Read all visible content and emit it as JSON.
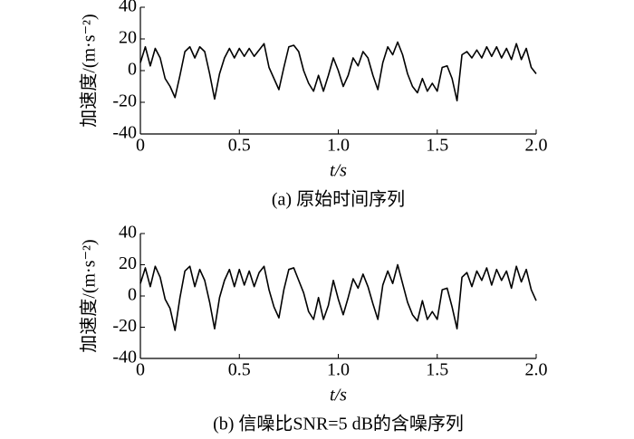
{
  "chart_data": [
    {
      "type": "line",
      "title": "(a) 原始时间序列",
      "xlabel": "t/s",
      "ylabel": "加速度/(m·s⁻²)",
      "color": "#000000",
      "xlim": [
        0,
        2
      ],
      "xticks": [
        0,
        0.5,
        {
          "value": 1,
          "label": "1.0"
        },
        1.5,
        {
          "value": 2,
          "label": "2.0"
        }
      ],
      "ylim": [
        -40,
        40
      ],
      "yticks": [
        -40,
        -20,
        0,
        20,
        40
      ],
      "x": [
        0,
        0.025,
        0.05,
        0.075,
        0.1,
        0.125,
        0.15,
        0.175,
        0.2,
        0.225,
        0.25,
        0.275,
        0.3,
        0.325,
        0.35,
        0.375,
        0.4,
        0.425,
        0.45,
        0.475,
        0.5,
        0.525,
        0.55,
        0.575,
        0.6,
        0.625,
        0.65,
        0.675,
        0.7,
        0.725,
        0.75,
        0.775,
        0.8,
        0.825,
        0.85,
        0.875,
        0.9,
        0.925,
        0.95,
        0.975,
        1,
        1.025,
        1.05,
        1.075,
        1.1,
        1.125,
        1.15,
        1.175,
        1.2,
        1.225,
        1.25,
        1.275,
        1.3,
        1.325,
        1.35,
        1.375,
        1.4,
        1.425,
        1.45,
        1.475,
        1.5,
        1.525,
        1.55,
        1.575,
        1.6,
        1.625,
        1.65,
        1.675,
        1.7,
        1.725,
        1.75,
        1.775,
        1.8,
        1.825,
        1.85,
        1.875,
        1.9,
        1.925,
        1.95,
        1.975,
        2
      ],
      "values": [
        5,
        15,
        3,
        14,
        8,
        -5,
        -10,
        -17,
        -3,
        12,
        15,
        8,
        15,
        12,
        -2,
        -18,
        -2,
        8,
        14,
        8,
        14,
        9,
        14,
        9,
        13,
        17,
        2,
        -5,
        -12,
        2,
        15,
        16,
        12,
        0,
        -8,
        -13,
        -3,
        -13,
        -3,
        8,
        0,
        -10,
        -3,
        8,
        3,
        12,
        8,
        -3,
        -12,
        5,
        15,
        10,
        18,
        10,
        -2,
        -10,
        -14,
        -5,
        -13,
        -8,
        -13,
        2,
        3,
        -5,
        -19,
        10,
        12,
        8,
        13,
        8,
        15,
        9,
        15,
        8,
        14,
        7,
        17,
        7,
        14,
        2,
        -2
      ]
    },
    {
      "type": "line",
      "title": "(b) 信噪比SNR=5 dB的含噪序列",
      "xlabel": "t/s",
      "ylabel": "加速度/(m·s⁻²)",
      "color": "#000000",
      "xlim": [
        0,
        2
      ],
      "xticks": [
        0,
        0.5,
        {
          "value": 1,
          "label": "1.0"
        },
        1.5,
        {
          "value": 2,
          "label": "2.0"
        }
      ],
      "ylim": [
        -40,
        40
      ],
      "yticks": [
        -40,
        -20,
        0,
        20,
        40
      ],
      "x": [
        0,
        0.025,
        0.05,
        0.075,
        0.1,
        0.125,
        0.15,
        0.175,
        0.2,
        0.225,
        0.25,
        0.275,
        0.3,
        0.325,
        0.35,
        0.375,
        0.4,
        0.425,
        0.45,
        0.475,
        0.5,
        0.525,
        0.55,
        0.575,
        0.6,
        0.625,
        0.65,
        0.675,
        0.7,
        0.725,
        0.75,
        0.775,
        0.8,
        0.825,
        0.85,
        0.875,
        0.9,
        0.925,
        0.95,
        0.975,
        1,
        1.025,
        1.05,
        1.075,
        1.1,
        1.125,
        1.15,
        1.175,
        1.2,
        1.225,
        1.25,
        1.275,
        1.3,
        1.325,
        1.35,
        1.375,
        1.4,
        1.425,
        1.45,
        1.475,
        1.5,
        1.525,
        1.55,
        1.575,
        1.6,
        1.625,
        1.65,
        1.675,
        1.7,
        1.725,
        1.75,
        1.775,
        1.8,
        1.825,
        1.85,
        1.875,
        1.9,
        1.925,
        1.95,
        1.975,
        2
      ],
      "values": [
        8,
        18,
        6,
        19,
        12,
        -2,
        -8,
        -22,
        -1,
        16,
        19,
        6,
        17,
        10,
        -4,
        -21,
        -1,
        10,
        17,
        6,
        17,
        7,
        16,
        6,
        15,
        19,
        4,
        -7,
        -14,
        4,
        17,
        18,
        10,
        2,
        -10,
        -15,
        -1,
        -15,
        -6,
        10,
        -2,
        -12,
        -1,
        11,
        5,
        14,
        6,
        -5,
        -15,
        7,
        16,
        8,
        20,
        8,
        -4,
        -12,
        -16,
        -3,
        -15,
        -10,
        -15,
        4,
        5,
        -7,
        -21,
        12,
        15,
        6,
        16,
        10,
        18,
        7,
        17,
        10,
        16,
        5,
        19,
        9,
        17,
        4,
        -3
      ]
    }
  ]
}
